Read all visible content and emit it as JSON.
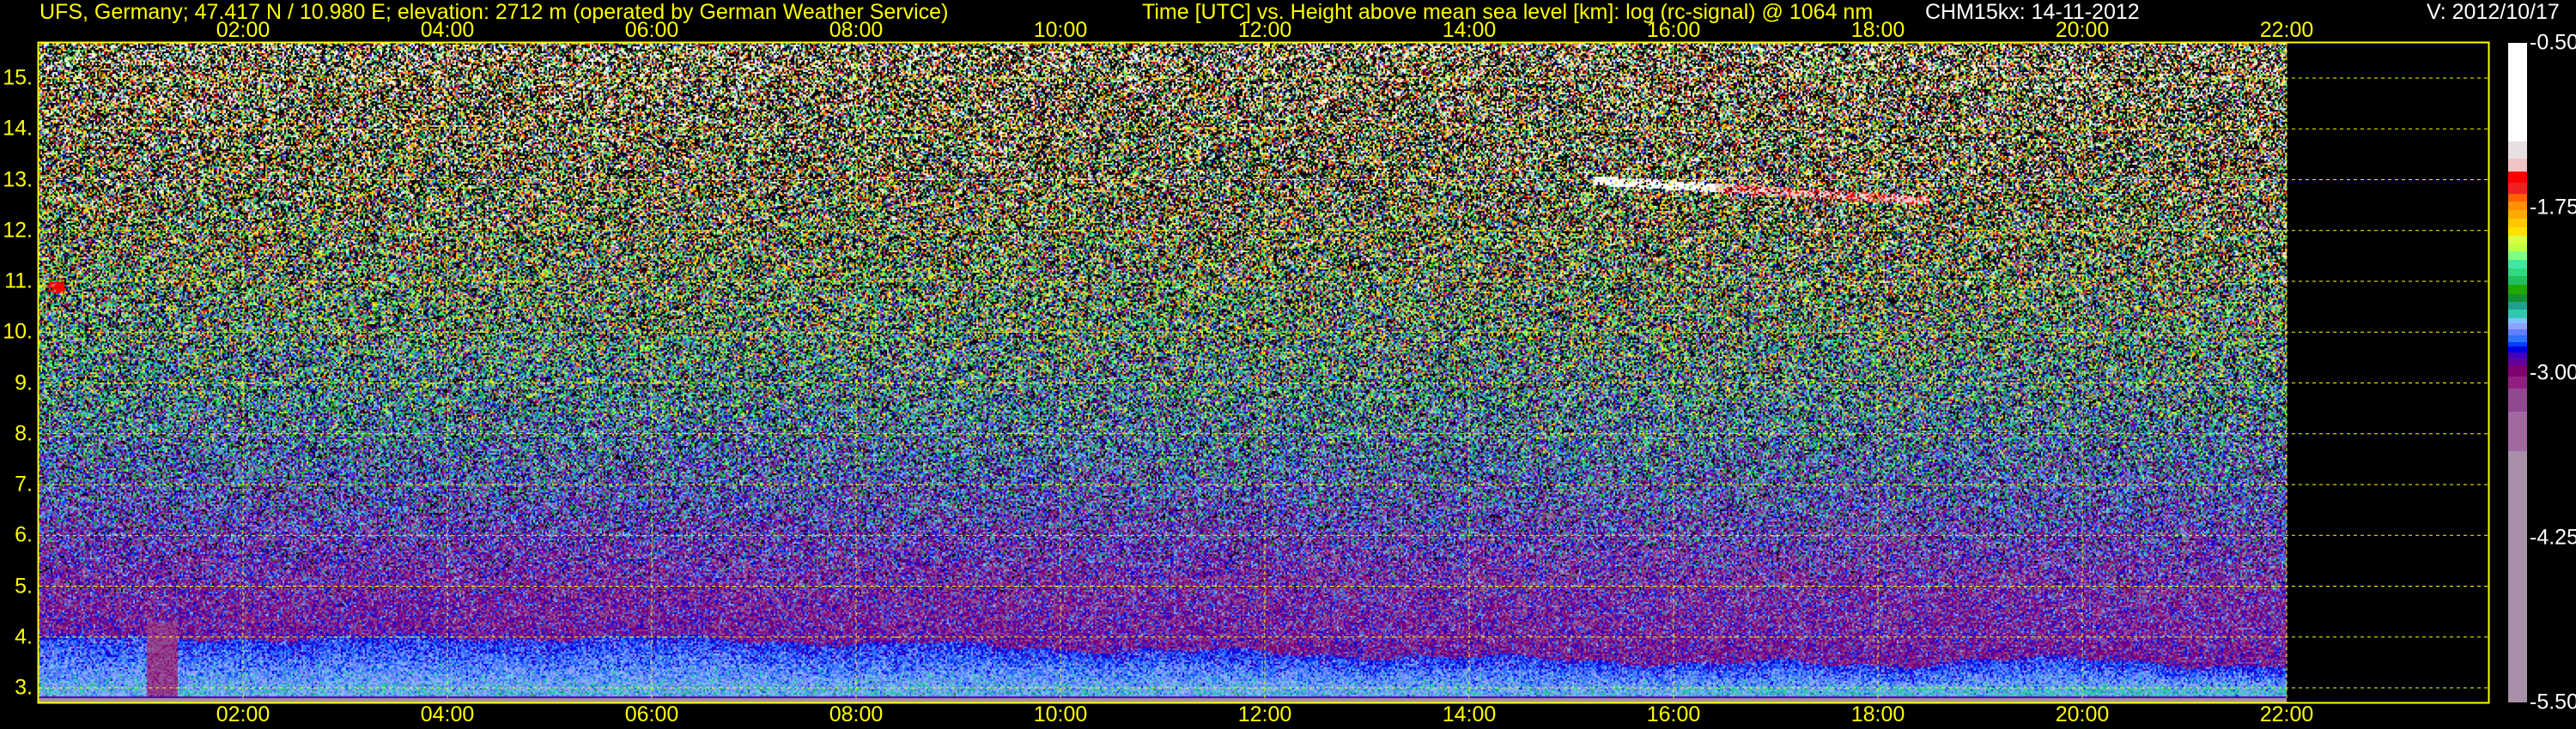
{
  "header": {
    "station": "UFS, Germany; 47.417 N / 10.980 E; elevation: 2712 m  (operated by German Weather Service)",
    "title": "Time [UTC] vs. Height above mean sea level [km]: log (rc-signal) @ 1064 nm",
    "instrument": "CHM15kx: 14-11-2012",
    "version": "V: 2012/10/17"
  },
  "colors": {
    "axis_text": "#ffff00",
    "grid": "#ffff00",
    "header_text_secondary": "#ffffff",
    "background": "#000000"
  },
  "chart_data": {
    "type": "heatmap",
    "title": "Time [UTC] vs. Height above mean sea level [km]: log (rc-signal) @ 1064 nm",
    "xlabel": "Time [UTC]",
    "ylabel": "Height above mean sea level [km]",
    "xlim_hours": [
      0,
      24
    ],
    "data_end_hour": 22,
    "ylim_km": [
      2.712,
      15.69
    ],
    "grid": true,
    "x_ticks": [
      {
        "hour": 2,
        "label": "02:00"
      },
      {
        "hour": 4,
        "label": "04:00"
      },
      {
        "hour": 6,
        "label": "06:00"
      },
      {
        "hour": 8,
        "label": "08:00"
      },
      {
        "hour": 10,
        "label": "10:00"
      },
      {
        "hour": 12,
        "label": "12:00"
      },
      {
        "hour": 14,
        "label": "14:00"
      },
      {
        "hour": 16,
        "label": "16:00"
      },
      {
        "hour": 18,
        "label": "18:00"
      },
      {
        "hour": 20,
        "label": "20:00"
      },
      {
        "hour": 22,
        "label": "22:00"
      }
    ],
    "y_ticks": [
      {
        "km": 3,
        "label": "3."
      },
      {
        "km": 4,
        "label": "4."
      },
      {
        "km": 5,
        "label": "5."
      },
      {
        "km": 6,
        "label": "6."
      },
      {
        "km": 7,
        "label": "7."
      },
      {
        "km": 8,
        "label": "8."
      },
      {
        "km": 9,
        "label": "9."
      },
      {
        "km": 10,
        "label": "10."
      },
      {
        "km": 11,
        "label": "11."
      },
      {
        "km": 12,
        "label": "12."
      },
      {
        "km": 13,
        "label": "13."
      },
      {
        "km": 14,
        "label": "14."
      },
      {
        "km": 15,
        "label": "15."
      }
    ],
    "features": {
      "boundary_layer_top_km": [
        {
          "hour": 0,
          "km": 4.0
        },
        {
          "hour": 6,
          "km": 4.0
        },
        {
          "hour": 14,
          "km": 3.6
        },
        {
          "hour": 18,
          "km": 3.45
        },
        {
          "hour": 19,
          "km": 3.6
        },
        {
          "hour": 22,
          "km": 3.45
        }
      ],
      "cirrus_cloud": {
        "hours": [
          15.2,
          18.5
        ],
        "km": [
          12.6,
          13.0
        ]
      },
      "small_cloud": {
        "hours": [
          0.1,
          0.25
        ],
        "km": 10.9
      }
    },
    "colorbar": {
      "range": [
        -5.5,
        -0.5
      ],
      "ticks": [
        "-0.50",
        "-1.75",
        "-3.00",
        "-4.25",
        "-5.50"
      ],
      "tick_values": [
        -0.5,
        -1.75,
        -3.0,
        -4.25,
        -5.5
      ],
      "levels": [
        {
          "min": -1.249,
          "color": "#ffffff"
        },
        {
          "min": -1.377,
          "color": "#e8e0e0"
        },
        {
          "min": -1.474,
          "color": "#f0c4c4"
        },
        {
          "min": -1.558,
          "color": "#ff0000"
        },
        {
          "min": -1.643,
          "color": "#f02020"
        },
        {
          "min": -1.703,
          "color": "#ff6000"
        },
        {
          "min": -1.767,
          "color": "#ff9000"
        },
        {
          "min": -1.834,
          "color": "#ffaa00"
        },
        {
          "min": -1.901,
          "color": "#ffc800"
        },
        {
          "min": -1.962,
          "color": "#ffe000"
        },
        {
          "min": -2.022,
          "color": "#d8ff40"
        },
        {
          "min": -2.083,
          "color": "#c0ff40"
        },
        {
          "min": -2.143,
          "color": "#80ff80"
        },
        {
          "min": -2.207,
          "color": "#40e8a0"
        },
        {
          "min": -2.268,
          "color": "#30d880"
        },
        {
          "min": -2.331,
          "color": "#20c060"
        },
        {
          "min": -2.402,
          "color": "#20a800"
        },
        {
          "min": -2.462,
          "color": "#109030"
        },
        {
          "min": -2.523,
          "color": "#20a090"
        },
        {
          "min": -2.587,
          "color": "#30c8b0"
        },
        {
          "min": -2.624,
          "color": "#80c0ff"
        },
        {
          "min": -2.671,
          "color": "#90a0ff"
        },
        {
          "min": -2.718,
          "color": "#6080ff"
        },
        {
          "min": -2.768,
          "color": "#3070ff"
        },
        {
          "min": -2.802,
          "color": "#0040ff"
        },
        {
          "min": -2.845,
          "color": "#0000e0"
        },
        {
          "min": -2.889,
          "color": "#4000c0"
        },
        {
          "min": -2.946,
          "color": "#6000a0"
        },
        {
          "min": -3.027,
          "color": "#800070"
        },
        {
          "min": -3.121,
          "color": "#902080"
        },
        {
          "min": -3.296,
          "color": "#904890"
        },
        {
          "min": -3.598,
          "color": "#a06aa0"
        },
        {
          "min": -5.5,
          "color": "#a890a8"
        }
      ]
    }
  }
}
